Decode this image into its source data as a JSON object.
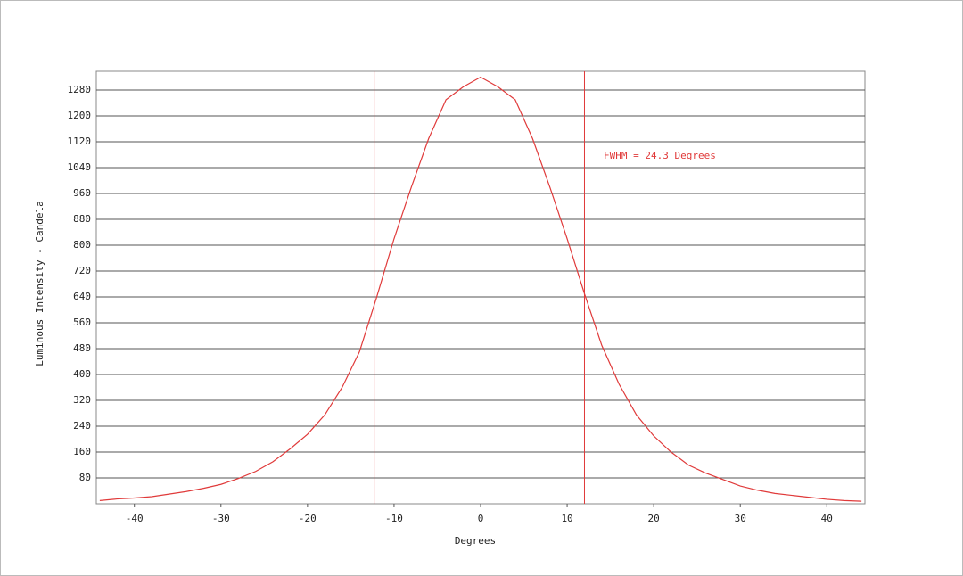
{
  "chart_data": {
    "type": "line",
    "x_label": "Degrees",
    "y_label": "Luminous Intensity - Candela",
    "x": [
      -44,
      -42,
      -40,
      -38,
      -36,
      -34,
      -32,
      -30,
      -28,
      -26,
      -24,
      -22,
      -20,
      -18,
      -16,
      -14,
      -12,
      -10,
      -8,
      -6,
      -4,
      -2,
      0,
      2,
      4,
      6,
      8,
      10,
      12,
      14,
      16,
      18,
      20,
      22,
      24,
      26,
      28,
      30,
      32,
      34,
      36,
      38,
      40,
      42,
      44
    ],
    "values": [
      10,
      15,
      18,
      22,
      30,
      38,
      48,
      60,
      78,
      100,
      130,
      170,
      215,
      275,
      360,
      470,
      640,
      820,
      980,
      1130,
      1250,
      1290,
      1320,
      1290,
      1250,
      1130,
      980,
      820,
      650,
      490,
      370,
      275,
      210,
      160,
      120,
      95,
      75,
      55,
      42,
      32,
      26,
      20,
      14,
      10,
      8
    ],
    "color": "#e03a3a",
    "xlim": [
      -44.4,
      44.4
    ],
    "xticks": [
      -40,
      -30,
      -20,
      -10,
      0,
      10,
      20,
      30,
      40
    ],
    "ylim": [
      0,
      1338
    ],
    "yticks": [
      80,
      160,
      240,
      320,
      400,
      480,
      560,
      640,
      720,
      800,
      880,
      960,
      1040,
      1120,
      1200,
      1280
    ],
    "grid": true,
    "vlines": [
      -12.3,
      12.0
    ],
    "annotation": "FWHM = 24.3 Degrees"
  }
}
